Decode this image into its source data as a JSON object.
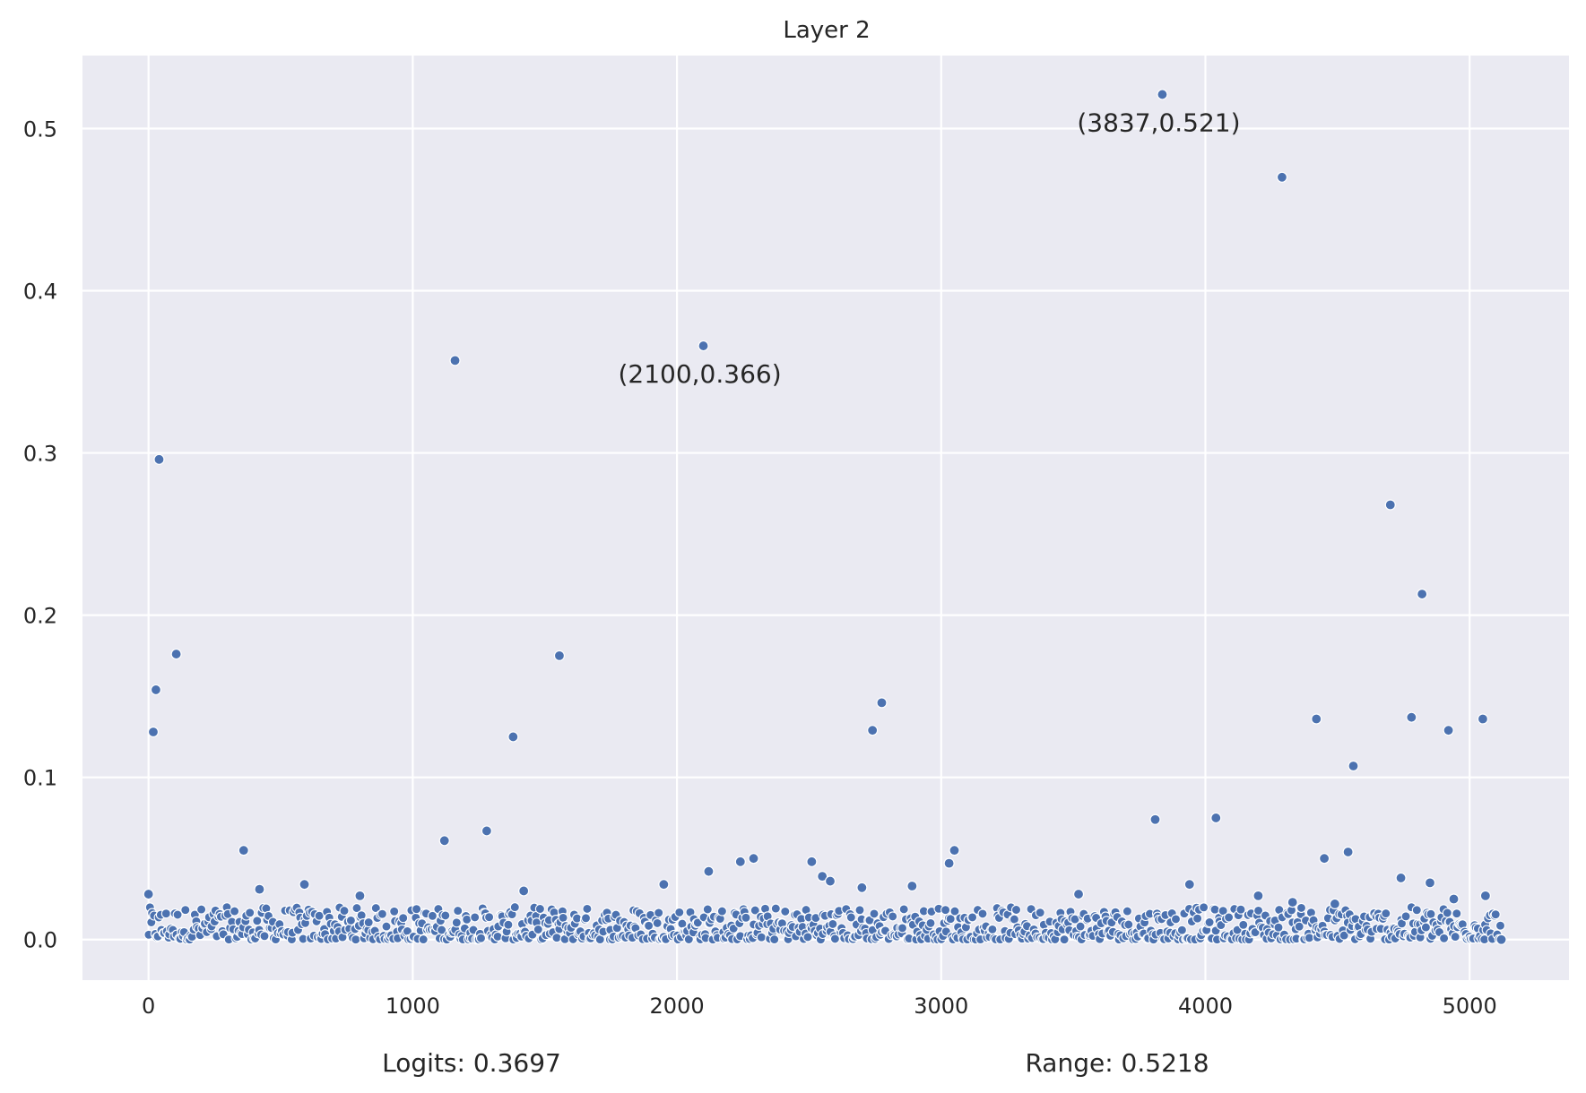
{
  "chart_data": {
    "type": "scatter",
    "title": "Layer 2",
    "xlabel": "",
    "ylabel": "",
    "xlim": [
      -250,
      5376
    ],
    "ylim": [
      -0.025,
      0.545
    ],
    "grid": true,
    "xticks": [
      0,
      1000,
      2000,
      3000,
      4000,
      5000
    ],
    "yticks": [
      0.0,
      0.1,
      0.2,
      0.3,
      0.4,
      0.5
    ],
    "xtick_labels": [
      "0",
      "1000",
      "2000",
      "3000",
      "4000",
      "5000"
    ],
    "ytick_labels": [
      "0.0",
      "0.1",
      "0.2",
      "0.3",
      "0.4",
      "0.5"
    ],
    "point_color": "#4c72b0",
    "background_color": "#eaeaf2",
    "series": [
      {
        "points": [
          [
            0,
            0.028
          ],
          [
            18,
            0.128
          ],
          [
            28,
            0.154
          ],
          [
            40,
            0.296
          ],
          [
            105,
            0.176
          ],
          [
            360,
            0.055
          ],
          [
            420,
            0.031
          ],
          [
            590,
            0.034
          ],
          [
            800,
            0.027
          ],
          [
            1120,
            0.061
          ],
          [
            1160,
            0.357
          ],
          [
            1280,
            0.067
          ],
          [
            1380,
            0.125
          ],
          [
            1420,
            0.03
          ],
          [
            1555,
            0.175
          ],
          [
            1950,
            0.034
          ],
          [
            2100,
            0.366
          ],
          [
            2120,
            0.042
          ],
          [
            2240,
            0.048
          ],
          [
            2290,
            0.05
          ],
          [
            2510,
            0.048
          ],
          [
            2550,
            0.039
          ],
          [
            2580,
            0.036
          ],
          [
            2700,
            0.032
          ],
          [
            2740,
            0.129
          ],
          [
            2775,
            0.146
          ],
          [
            2890,
            0.033
          ],
          [
            3030,
            0.047
          ],
          [
            3050,
            0.055
          ],
          [
            3520,
            0.028
          ],
          [
            3810,
            0.074
          ],
          [
            3837,
            0.521
          ],
          [
            3940,
            0.034
          ],
          [
            4040,
            0.075
          ],
          [
            4200,
            0.027
          ],
          [
            4290,
            0.47
          ],
          [
            4330,
            0.023
          ],
          [
            4420,
            0.136
          ],
          [
            4450,
            0.05
          ],
          [
            4490,
            0.022
          ],
          [
            4540,
            0.054
          ],
          [
            4560,
            0.107
          ],
          [
            4700,
            0.268
          ],
          [
            4740,
            0.038
          ],
          [
            4780,
            0.137
          ],
          [
            4820,
            0.213
          ],
          [
            4850,
            0.035
          ],
          [
            4920,
            0.129
          ],
          [
            4940,
            0.025
          ],
          [
            5050,
            0.136
          ],
          [
            5060,
            0.027
          ],
          [
            5120,
            0.0
          ]
        ],
        "dense_band": {
          "x_range": [
            0,
            5120
          ],
          "y_range": [
            0.0,
            0.02
          ]
        }
      }
    ],
    "annotations": [
      {
        "text": "(2100,0.366)",
        "x": 2100,
        "y": 0.366
      },
      {
        "text": "(3837,0.521)",
        "x": 3837,
        "y": 0.521
      }
    ]
  },
  "footer": {
    "logits": "Logits: 0.3697",
    "range": "Range: 0.5218"
  }
}
